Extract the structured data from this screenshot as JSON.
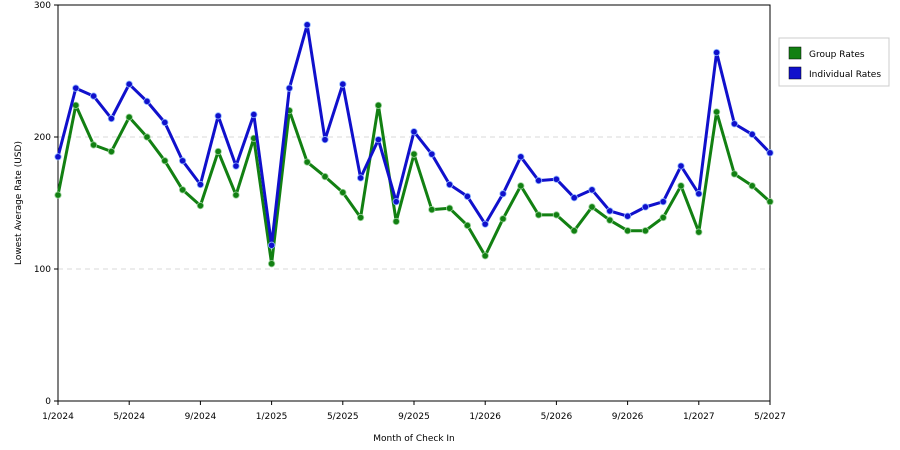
{
  "chart_data": {
    "type": "line",
    "xlabel": "Month of Check In",
    "ylabel": "Lowest Average Rate (USD)",
    "ylim": [
      0,
      300
    ],
    "yticks": [
      0,
      100,
      200,
      300
    ],
    "xticks": [
      "1/2024",
      "5/2024",
      "9/2024",
      "1/2025",
      "5/2025",
      "9/2025",
      "1/2026",
      "5/2026",
      "9/2026",
      "1/2027",
      "5/2027"
    ],
    "x": [
      "1/2024",
      "2/2024",
      "3/2024",
      "4/2024",
      "5/2024",
      "6/2024",
      "7/2024",
      "8/2024",
      "9/2024",
      "10/2024",
      "11/2024",
      "12/2024",
      "1/2025",
      "2/2025",
      "3/2025",
      "4/2025",
      "5/2025",
      "6/2025",
      "7/2025",
      "8/2025",
      "9/2025",
      "10/2025",
      "11/2025",
      "12/2025",
      "1/2026",
      "2/2026",
      "3/2026",
      "4/2026",
      "5/2026",
      "6/2026",
      "7/2026",
      "8/2026",
      "9/2026",
      "10/2026",
      "11/2026",
      "12/2026",
      "1/2027",
      "2/2027",
      "3/2027",
      "4/2027",
      "5/2027"
    ],
    "series": [
      {
        "name": "Group Rates",
        "color": "#128012",
        "values": [
          156,
          224,
          194,
          189,
          215,
          200,
          182,
          160,
          148,
          189,
          156,
          199,
          104,
          220,
          181,
          170,
          158,
          139,
          224,
          136,
          187,
          145,
          146,
          133,
          110,
          138,
          163,
          141,
          141,
          129,
          147,
          137,
          129,
          129,
          139,
          163,
          128,
          219,
          172,
          163,
          151
        ]
      },
      {
        "name": "Individual Rates",
        "color": "#1010cc",
        "values": [
          185,
          237,
          231,
          214,
          240,
          227,
          211,
          182,
          164,
          216,
          178,
          217,
          118,
          237,
          285,
          198,
          240,
          169,
          198,
          151,
          204,
          187,
          164,
          155,
          134,
          157,
          185,
          167,
          168,
          154,
          160,
          144,
          140,
          147,
          151,
          178,
          157,
          264,
          210,
          202,
          188
        ]
      }
    ],
    "grid": true,
    "legend_position": "right"
  }
}
